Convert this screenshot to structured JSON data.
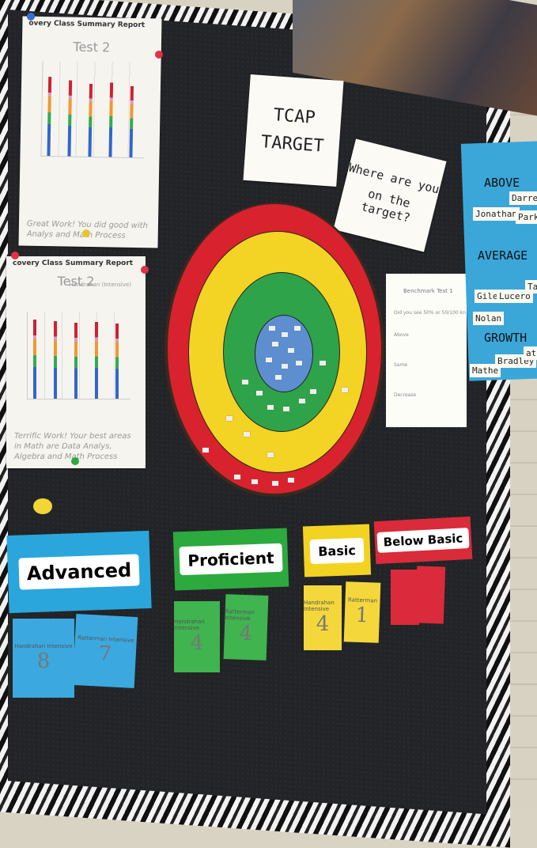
{
  "board": {
    "report_title": "overy Class Summary Report",
    "report_title_2": "covery Class Summary Report",
    "test_label_1": "Test 2",
    "test_label_2": "Test 2",
    "report_side_2": "Handrahan (Intensive)",
    "report_note_1": "Great Work! You did good with Analys and Math Process",
    "report_note_2": "Terrific Work! Your best areas in Math are Data Analys, Algebra and Math Process"
  },
  "cards": {
    "tcap_line1": "TCAP",
    "tcap_line2": "TARGET",
    "question_line1": "Where are you",
    "question_line2": "on the target?"
  },
  "right_column": {
    "above": "ABOVE",
    "average": "AVERAGE",
    "growth": "GROWTH",
    "names": [
      "Darret",
      "Jonathan",
      "Park",
      "Gilee",
      "Lucero",
      "Tay",
      "Nolan",
      "Mathe",
      "Bradley",
      "ath"
    ]
  },
  "right_paper": {
    "title": "Benchmark Test 1",
    "lines": [
      "Did you see 50% or 50/100 kn",
      "Above",
      "Same",
      "Decrease"
    ]
  },
  "levels": [
    {
      "label": "Advanced",
      "color": "#2aa6dc"
    },
    {
      "label": "Proficient",
      "color": "#2daa3e"
    },
    {
      "label": "Basic",
      "color": "#f3d322"
    },
    {
      "label": "Below Basic",
      "color": "#d92b3a"
    }
  ],
  "notes": {
    "advanced_1_name": "Handrahan Intensive",
    "advanced_1_value": "8",
    "advanced_2_name": "Ratterman Intensive",
    "advanced_2_value": "7",
    "proficient_1_name": "Handrahan Intensive",
    "proficient_1_value": "4",
    "proficient_2_name": "Ratterman Intensive",
    "proficient_2_value": "4",
    "basic_1_name": "Handrahan Intensive",
    "basic_1_value": "4",
    "basic_2_name": "Ratterman",
    "basic_2_value": "1"
  },
  "colors": {
    "target_outer": "#d8222e",
    "target_yellow": "#f3d323",
    "target_green": "#2fa34a",
    "target_center": "#5d8ed0"
  }
}
